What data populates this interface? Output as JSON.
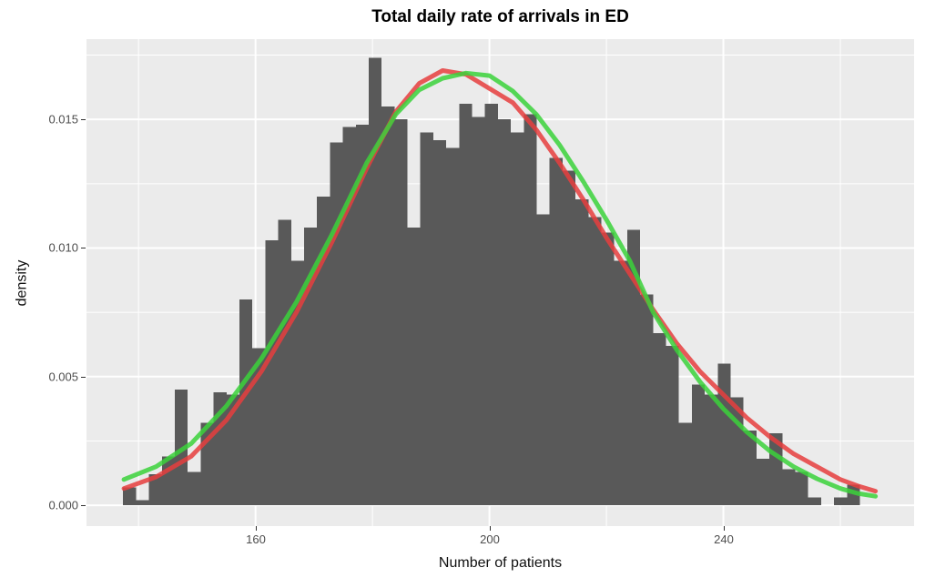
{
  "title": "Total daily rate of arrivals in ED",
  "x_axis": {
    "title": "Number of patients",
    "major_ticks": [
      160,
      200,
      240
    ],
    "minor_ticks": [
      140,
      180,
      220,
      260
    ],
    "range": [
      131.1,
      272.6
    ]
  },
  "y_axis": {
    "title": "density",
    "major_ticks": [
      0.0,
      0.005,
      0.01,
      0.015
    ],
    "major_tick_labels": [
      "0.000",
      "0.005",
      "0.010",
      "0.015"
    ],
    "minor_ticks": [
      0.0025,
      0.0075,
      0.0125,
      0.0175
    ],
    "range": [
      -0.00081,
      0.01812
    ]
  },
  "colors": {
    "panel_background": "#EBEBEB",
    "gridline": "#FFFFFF",
    "bar_fill": "#595959",
    "normal_curve": "#E63E3E",
    "kde_curve": "#3BD23B",
    "tick_label": "#4D4D4D",
    "tick_mark": "#333333",
    "title_text": "#000000"
  },
  "chart_data": {
    "type": "histogram_with_density_curves",
    "title": "Total daily rate of arrivals in ED",
    "xlabel": "Number of patients",
    "ylabel": "density",
    "grid": "major-and-minor, white on grey panel (ggplot style)",
    "legend": "none",
    "histogram": {
      "bin_start": 137.36,
      "binwidth": 2.21,
      "densities": [
        0.0007,
        0.0002,
        0.0012,
        0.0019,
        0.0045,
        0.0013,
        0.0032,
        0.0044,
        0.0043,
        0.008,
        0.0061,
        0.0103,
        0.0111,
        0.0095,
        0.0108,
        0.012,
        0.0141,
        0.0147,
        0.0148,
        0.0174,
        0.0155,
        0.015,
        0.0108,
        0.0145,
        0.0142,
        0.0139,
        0.0156,
        0.0151,
        0.0156,
        0.015,
        0.0145,
        0.0152,
        0.0113,
        0.0135,
        0.013,
        0.0119,
        0.0112,
        0.0106,
        0.0095,
        0.0107,
        0.0082,
        0.0067,
        0.0062,
        0.0032,
        0.0047,
        0.0043,
        0.0055,
        0.0042,
        0.0029,
        0.0018,
        0.0028,
        0.0014,
        0.0013,
        0.0003,
        0.0,
        0.0003,
        0.0008
      ]
    },
    "series": [
      {
        "name": "fitted-normal-curve",
        "color": "#E63E3E",
        "peak": {
          "x": 192,
          "density": 0.0169
        },
        "x": [
          137.5,
          143,
          149,
          155,
          161,
          167,
          173,
          179,
          184,
          188,
          192,
          196,
          200,
          204,
          208,
          212,
          216,
          220,
          224,
          228,
          232,
          236,
          240,
          244,
          248,
          252,
          256,
          260,
          263,
          266
        ],
        "y": [
          0.00065,
          0.0011,
          0.0019,
          0.0033,
          0.0052,
          0.0075,
          0.0102,
          0.0131,
          0.0153,
          0.0164,
          0.0169,
          0.01675,
          0.0162,
          0.01565,
          0.0146,
          0.0133,
          0.0119,
          0.0104,
          0.009,
          0.0076,
          0.0063,
          0.0052,
          0.0043,
          0.0034,
          0.00265,
          0.002,
          0.0015,
          0.001,
          0.00075,
          0.00055
        ]
      },
      {
        "name": "kernel-density-curve",
        "color": "#3BD23B",
        "peak": {
          "x": 196,
          "density": 0.0168
        },
        "x": [
          137.5,
          143,
          149,
          155,
          161,
          167,
          173,
          179,
          184,
          188,
          192,
          196,
          200,
          204,
          208,
          212,
          216,
          220,
          224,
          228,
          232,
          236,
          240,
          244,
          248,
          252,
          256,
          260,
          263,
          266
        ],
        "y": [
          0.001,
          0.0015,
          0.0024,
          0.00385,
          0.0057,
          0.0079,
          0.0105,
          0.0133,
          0.0152,
          0.01615,
          0.0166,
          0.0168,
          0.0167,
          0.0161,
          0.0152,
          0.014,
          0.0126,
          0.0111,
          0.0095,
          0.0075,
          0.00605,
          0.0048,
          0.00375,
          0.00285,
          0.0021,
          0.0015,
          0.00103,
          0.00065,
          0.00046,
          0.00035
        ]
      }
    ]
  }
}
